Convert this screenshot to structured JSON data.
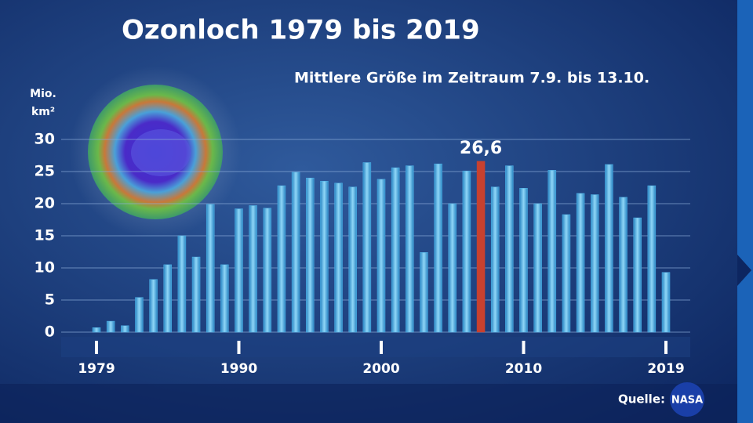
{
  "chart_data": {
    "type": "bar",
    "title": "Ozonloch 1979 bis 2019",
    "subtitle": "Mittlere Größe im Zeitraum 7.9. bis 13.10.",
    "y_label": [
      "Mio.",
      "km²"
    ],
    "source": "Quelle:",
    "logo": "NASA",
    "categories": [
      "1979",
      null,
      null,
      null,
      null,
      null,
      null,
      null,
      null,
      null,
      "1990",
      null,
      null,
      null,
      null,
      null,
      null,
      null,
      null,
      null,
      "2000",
      null,
      null,
      null,
      null,
      null,
      null,
      null,
      null,
      null,
      "2010",
      null,
      null,
      null,
      null,
      null,
      null,
      null,
      null,
      null,
      "2019"
    ],
    "values": [
      0.7,
      1.7,
      1.0,
      5.4,
      8.2,
      10.5,
      15.0,
      11.7,
      19.9,
      10.5,
      19.2,
      19.7,
      19.3,
      22.8,
      24.9,
      24.0,
      23.5,
      23.2,
      22.6,
      26.4,
      23.8,
      25.6,
      25.9,
      12.4,
      26.2,
      20.0,
      25.1,
      26.6,
      22.6,
      25.9,
      22.4,
      20.0,
      25.2,
      18.3,
      21.6,
      21.4,
      26.1,
      21.0,
      17.8,
      22.8,
      9.3
    ],
    "value_labels": [
      null,
      null,
      null,
      null,
      null,
      null,
      null,
      null,
      null,
      null,
      null,
      null,
      null,
      null,
      null,
      null,
      null,
      null,
      null,
      null,
      null,
      null,
      null,
      null,
      null,
      null,
      null,
      "26,6",
      null,
      null,
      null,
      null,
      null,
      null,
      null,
      null,
      null,
      null,
      null,
      null,
      null
    ],
    "color": "#4fb3e8",
    "highlight_color": "#c8412f",
    "ylim": [
      0,
      30
    ],
    "yticks": [
      0,
      5,
      10,
      15,
      20,
      25,
      30
    ],
    "grid": true
  }
}
